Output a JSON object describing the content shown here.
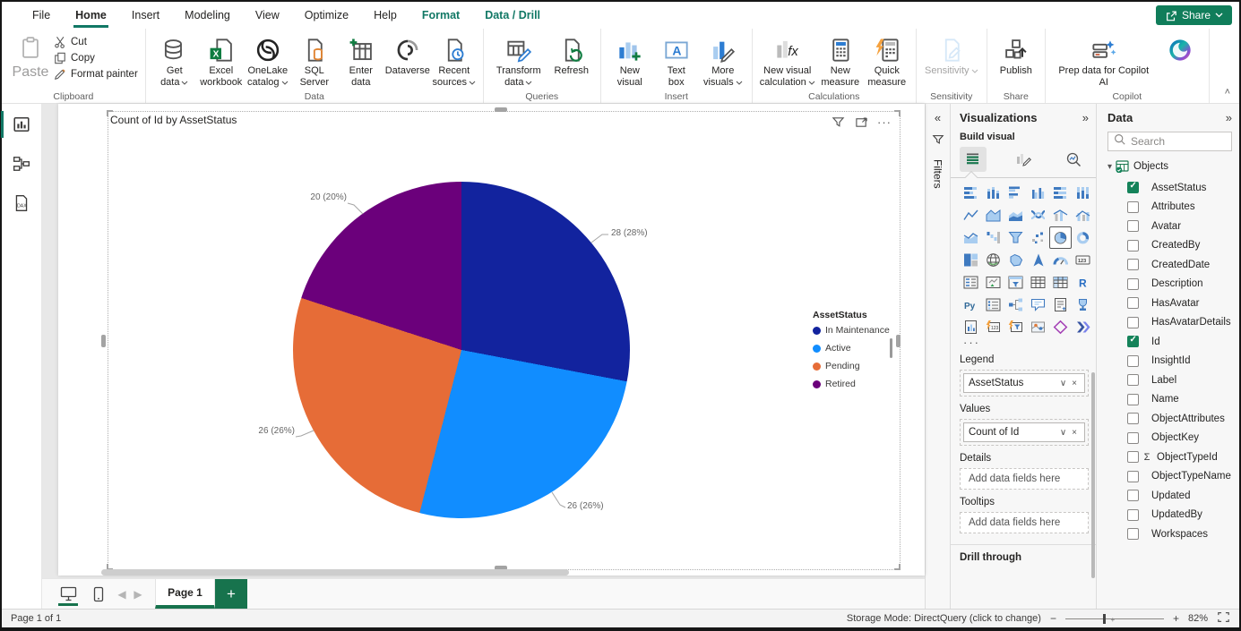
{
  "menubar": {
    "items": [
      {
        "label": "File"
      },
      {
        "label": "Home",
        "active": true
      },
      {
        "label": "Insert"
      },
      {
        "label": "Modeling"
      },
      {
        "label": "View"
      },
      {
        "label": "Optimize"
      },
      {
        "label": "Help"
      },
      {
        "label": "Format",
        "teal": true
      },
      {
        "label": "Data / Drill",
        "teal": true
      }
    ],
    "share_label": "Share"
  },
  "ribbon": {
    "clipboard": {
      "label": "Clipboard",
      "paste_label": "Paste",
      "items": [
        {
          "label": "Cut",
          "icon": "cut"
        },
        {
          "label": "Copy",
          "icon": "copy"
        },
        {
          "label": "Format painter",
          "icon": "format-painter"
        }
      ]
    },
    "groups": [
      {
        "label": "Data",
        "buttons": [
          {
            "lines": [
              "Get",
              "data"
            ],
            "icon": "get-data",
            "dropdown": true
          },
          {
            "lines": [
              "Excel",
              "workbook"
            ],
            "icon": "excel-workbook"
          },
          {
            "lines": [
              "OneLake",
              "catalog"
            ],
            "icon": "onelake-catalog",
            "dropdown": true
          },
          {
            "lines": [
              "SQL",
              "Server"
            ],
            "icon": "sql-server"
          },
          {
            "lines": [
              "Enter",
              "data"
            ],
            "icon": "enter-data"
          },
          {
            "lines": [
              "Dataverse"
            ],
            "icon": "dataverse"
          },
          {
            "lines": [
              "Recent",
              "sources"
            ],
            "icon": "recent-sources",
            "dropdown": true
          }
        ]
      },
      {
        "label": "Queries",
        "buttons": [
          {
            "lines": [
              "Transform",
              "data"
            ],
            "icon": "transform-data",
            "dropdown": true,
            "wide": true
          },
          {
            "lines": [
              "Refresh"
            ],
            "icon": "refresh"
          }
        ]
      },
      {
        "label": "Insert",
        "buttons": [
          {
            "lines": [
              "New",
              "visual"
            ],
            "icon": "new-visual"
          },
          {
            "lines": [
              "Text",
              "box"
            ],
            "icon": "text-box"
          },
          {
            "lines": [
              "More",
              "visuals"
            ],
            "icon": "more-visuals",
            "dropdown": true
          }
        ]
      },
      {
        "label": "Calculations",
        "buttons": [
          {
            "lines": [
              "New visual",
              "calculation"
            ],
            "icon": "new-visual-calculation",
            "dropdown": true,
            "wide": true
          },
          {
            "lines": [
              "New",
              "measure"
            ],
            "icon": "new-measure"
          },
          {
            "lines": [
              "Quick",
              "measure"
            ],
            "icon": "quick-measure"
          }
        ]
      },
      {
        "label": "Sensitivity",
        "buttons": [
          {
            "lines": [
              "Sensitivity"
            ],
            "icon": "sensitivity",
            "dropdown": true,
            "disabled": true,
            "wide": true
          }
        ]
      },
      {
        "label": "Share",
        "buttons": [
          {
            "lines": [
              "Publish"
            ],
            "icon": "publish"
          }
        ]
      },
      {
        "label": "Copilot",
        "buttons": [
          {
            "lines": [
              "Prep data for Copilot",
              "AI"
            ],
            "icon": "prep-copilot",
            "xwide": true
          },
          {
            "lines": [
              ""
            ],
            "icon": "copilot"
          }
        ]
      }
    ]
  },
  "leftnav": {
    "items": [
      {
        "name": "report-view",
        "active": true
      },
      {
        "name": "model-view"
      },
      {
        "name": "dax-query-view"
      }
    ]
  },
  "canvas": {
    "visual_title": "Count of Id by AssetStatus"
  },
  "chart_data": {
    "type": "pie",
    "title": "Count of Id by AssetStatus",
    "values_field": "Count of Id",
    "legend_title": "AssetStatus",
    "legend_position": "right",
    "slices": [
      {
        "label": "In Maintenance",
        "value": 28,
        "pct": 28,
        "color": "#12239E",
        "data_label": "28 (28%)"
      },
      {
        "label": "Active",
        "value": 26,
        "pct": 26,
        "color": "#118DFF",
        "data_label": "26 (26%)"
      },
      {
        "label": "Pending",
        "value": 26,
        "pct": 26,
        "color": "#E66C37",
        "data_label": "26 (26%)"
      },
      {
        "label": "Retired",
        "value": 20,
        "pct": 20,
        "color": "#6B007B",
        "data_label": "20 (20%)"
      }
    ]
  },
  "filters_pane": {
    "label": "Filters"
  },
  "visualizations": {
    "title": "Visualizations",
    "build_label": "Build visual",
    "selected_visual": "pie-chart",
    "icons": [
      "stacked-bar-chart",
      "stacked-column-chart",
      "clustered-bar-chart",
      "clustered-column-chart",
      "100-stacked-bar-chart",
      "100-stacked-column-chart",
      "line-chart",
      "area-chart",
      "stacked-area-chart",
      "ribbon-chart",
      "line-stacked-column-chart",
      "line-clustered-column-chart",
      "line-and-area-chart",
      "waterfall-chart",
      "funnel-chart",
      "scatter-chart",
      "pie-chart",
      "donut-chart",
      "treemap",
      "map",
      "filled-map",
      "azure-map",
      "gauge",
      "card",
      "multi-row-card",
      "kpi",
      "slicer",
      "table",
      "matrix",
      "r-script-visual",
      "python-visual",
      "list-slicer",
      "decomposition-tree",
      "q-and-a",
      "smart-narrative",
      "metrics",
      "paginated-report",
      "power-automate-123",
      "power-automate-funnel",
      "arcgis-map",
      "power-apps",
      "power-automate"
    ],
    "wells": [
      {
        "label": "Legend",
        "pill": "AssetStatus"
      },
      {
        "label": "Values",
        "pill": "Count of Id"
      },
      {
        "label": "Details",
        "placeholder": "Add data fields here"
      },
      {
        "label": "Tooltips",
        "placeholder": "Add data fields here"
      }
    ],
    "drill_through_label": "Drill through"
  },
  "data_pane": {
    "title": "Data",
    "search_placeholder": "Search",
    "table_name": "Objects",
    "fields": [
      {
        "name": "AssetStatus",
        "checked": true
      },
      {
        "name": "Attributes"
      },
      {
        "name": "Avatar"
      },
      {
        "name": "CreatedBy"
      },
      {
        "name": "CreatedDate"
      },
      {
        "name": "Description"
      },
      {
        "name": "HasAvatar"
      },
      {
        "name": "HasAvatarDetails"
      },
      {
        "name": "Id",
        "checked": true
      },
      {
        "name": "InsightId"
      },
      {
        "name": "Label"
      },
      {
        "name": "Name"
      },
      {
        "name": "ObjectAttributes"
      },
      {
        "name": "ObjectKey"
      },
      {
        "name": "ObjectTypeId",
        "sigma": true
      },
      {
        "name": "ObjectTypeName"
      },
      {
        "name": "Updated"
      },
      {
        "name": "UpdatedBy"
      },
      {
        "name": "Workspaces"
      }
    ]
  },
  "pagebar": {
    "page_tab": "Page 1"
  },
  "statusbar": {
    "left": "Page 1 of 1",
    "storage": "Storage Mode: DirectQuery (click to change)",
    "zoom": "82%"
  }
}
